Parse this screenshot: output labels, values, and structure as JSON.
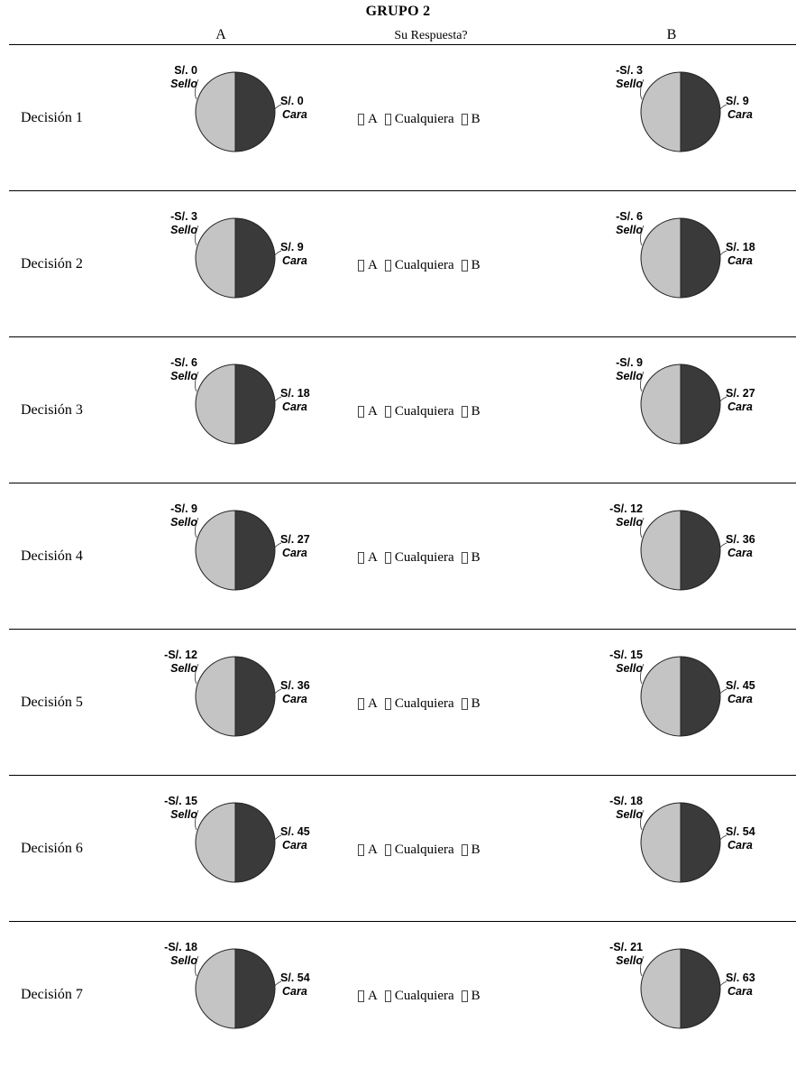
{
  "header": {
    "title": "GRUPO 2",
    "col_a": "A",
    "col_mid": "Su Respuesta?",
    "col_b": "B"
  },
  "choice": {
    "a": "A",
    "either": "Cualquiera",
    "b": "B"
  },
  "decisions": [
    {
      "label": "Decisión 1",
      "a": {
        "sello": "S/. 0",
        "cara": "S/. 0"
      },
      "b": {
        "sello": "-S/. 3",
        "cara": "S/. 9"
      }
    },
    {
      "label": "Decisión 2",
      "a": {
        "sello": "-S/. 3",
        "cara": "S/. 9"
      },
      "b": {
        "sello": "-S/. 6",
        "cara": "S/. 18"
      }
    },
    {
      "label": "Decisión 3",
      "a": {
        "sello": "-S/. 6",
        "cara": "S/. 18"
      },
      "b": {
        "sello": "-S/. 9",
        "cara": "S/. 27"
      }
    },
    {
      "label": "Decisión 4",
      "a": {
        "sello": "-S/. 9",
        "cara": "S/. 27"
      },
      "b": {
        "sello": "-S/. 12",
        "cara": "S/. 36"
      }
    },
    {
      "label": "Decisión 5",
      "a": {
        "sello": "-S/. 12",
        "cara": "S/. 36"
      },
      "b": {
        "sello": "-S/. 15",
        "cara": "S/. 45"
      }
    },
    {
      "label": "Decisión 6",
      "a": {
        "sello": "-S/. 15",
        "cara": "S/. 45"
      },
      "b": {
        "sello": "-S/. 18",
        "cara": "S/. 54"
      }
    },
    {
      "label": "Decisión 7",
      "a": {
        "sello": "-S/. 18",
        "cara": "S/. 54"
      },
      "b": {
        "sello": "-S/. 21",
        "cara": "S/. 63"
      }
    }
  ],
  "pie_labels": {
    "sello": "Sello",
    "cara": "Cara"
  },
  "colors": {
    "sello_slice": "#c4c4c4",
    "cara_slice": "#3a3a3a",
    "outline": "#222222"
  }
}
